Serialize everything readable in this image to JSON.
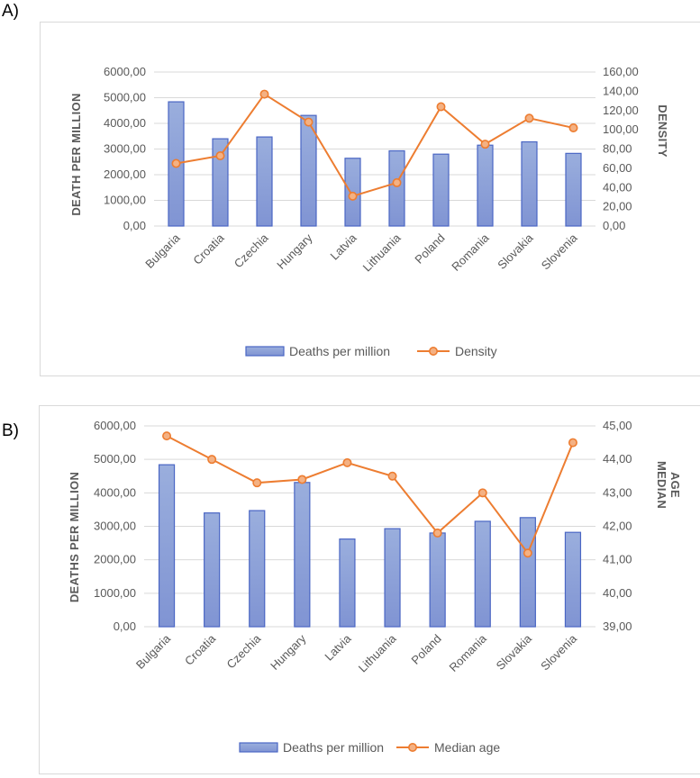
{
  "panels": [
    {
      "label": "A)",
      "chart_data": {
        "type": "bar+line",
        "title": "",
        "categories": [
          "Bulgaria",
          "Croatia",
          "Czechia",
          "Hungary",
          "Latvia",
          "Lithuania",
          "Poland",
          "Romania",
          "Slovakia",
          "Slovenia"
        ],
        "series": [
          {
            "name": "Deaths per million",
            "type": "bar",
            "axis": "left",
            "values": [
              4840,
              3400,
              3470,
              4310,
              2640,
              2930,
              2800,
              3150,
              3280,
              2830
            ]
          },
          {
            "name": "Density",
            "type": "line",
            "axis": "right",
            "values": [
              65,
              73,
              137,
              108,
              31,
              45,
              124,
              85,
              112,
              102
            ]
          }
        ],
        "ylabel_left": "DEATH PER MILLION",
        "ylabel_right": "DENSITY",
        "ylim_left": [
          0,
          6000
        ],
        "ylim_right": [
          0,
          160
        ],
        "yticks_left": [
          "0,00",
          "1000,00",
          "2000,00",
          "3000,00",
          "4000,00",
          "5000,00",
          "6000,00"
        ],
        "yticks_right": [
          "0,00",
          "20,00",
          "40,00",
          "60,00",
          "80,00",
          "100,00",
          "120,00",
          "140,00",
          "160,00"
        ],
        "legend_position": "bottom",
        "colors": {
          "bar_fill_top": "#9aaedd",
          "bar_fill_bottom": "#8094d3",
          "bar_stroke": "#4a66c4",
          "line": "#ed7d31",
          "marker_fill": "#f4b183"
        }
      }
    },
    {
      "label": "B)",
      "chart_data": {
        "type": "bar+line",
        "title": "",
        "categories": [
          "Bulgaria",
          "Croatia",
          "Czechia",
          "Hungary",
          "Latvia",
          "Lithuania",
          "Poland",
          "Romania",
          "Slovakia",
          "Slovenia"
        ],
        "series": [
          {
            "name": "Deaths per million",
            "type": "bar",
            "axis": "left",
            "values": [
              4840,
              3400,
              3470,
              4310,
              2620,
              2930,
              2800,
              3150,
              3260,
              2820
            ]
          },
          {
            "name": "Median age",
            "type": "line",
            "axis": "right",
            "values": [
              44.7,
              44.0,
              43.3,
              43.4,
              43.9,
              43.5,
              41.8,
              43.0,
              41.2,
              44.5
            ]
          }
        ],
        "ylabel_left": "DEATHS PER MILLION",
        "ylabel_right": [
          "MEDIAN",
          "AGE"
        ],
        "ylim_left": [
          0,
          6000
        ],
        "ylim_right": [
          39,
          45
        ],
        "yticks_left": [
          "0,00",
          "1000,00",
          "2000,00",
          "3000,00",
          "4000,00",
          "5000,00",
          "6000,00"
        ],
        "yticks_right": [
          "39,00",
          "40,00",
          "41,00",
          "42,00",
          "43,00",
          "44,00",
          "45,00"
        ],
        "legend_position": "bottom",
        "colors": {
          "bar_fill_top": "#9aaedd",
          "bar_fill_bottom": "#8094d3",
          "bar_stroke": "#4a66c4",
          "line": "#ed7d31",
          "marker_fill": "#f4b183"
        }
      }
    }
  ]
}
